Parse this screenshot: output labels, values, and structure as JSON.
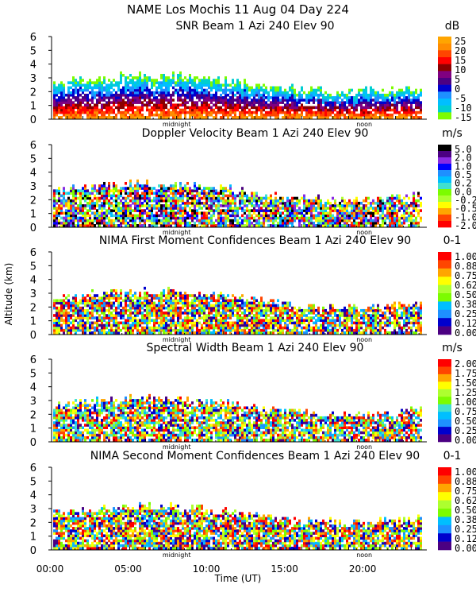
{
  "chart_data": {
    "type": "heatmap",
    "title": "NAME Los Mochis   11 Aug 04 Day 224",
    "xlabel": "Time (UT)",
    "ylabel": "Altitude (km)",
    "xlim": [
      0,
      24
    ],
    "x_ticks": [
      "00:00",
      "05:00",
      "10:00",
      "15:00",
      "20:00"
    ],
    "x_tick_values": [
      0,
      5,
      10,
      15,
      20
    ],
    "midnight_label": "midnight",
    "midnight_time": 8,
    "noon_label": "noon",
    "noon_time": 20,
    "ylim": [
      0,
      6
    ],
    "y_ticks": [
      "0",
      "1",
      "2",
      "3",
      "4",
      "5",
      "6"
    ],
    "panels": [
      {
        "title": "SNR Beam 1 Azi 240 Elev 90",
        "unit": "dB",
        "colorbar_labels": [
          "25",
          "20",
          "15",
          "10",
          "5",
          "0",
          "-5",
          "-10",
          "-15"
        ],
        "colors": [
          "#ffa500",
          "#ff8c00",
          "#ff4500",
          "#ff0000",
          "#8b0000",
          "#800080",
          "#4b0082",
          "#0000cd",
          "#1e90ff",
          "#00bfff",
          "#00ced1",
          "#7cfc00"
        ]
      },
      {
        "title": "Doppler Velocity Beam 1 Azi 240 Elev 90",
        "unit": "m/s",
        "colorbar_labels": [
          "5.0",
          "2.0",
          "1.0",
          "0.5",
          "0.2",
          "0.0",
          "-0.2",
          "-0.5",
          "-1.0",
          "-2.0"
        ],
        "colors": [
          "#000000",
          "#4b0082",
          "#8a2be2",
          "#0000ff",
          "#1e90ff",
          "#00bfff",
          "#40e0d0",
          "#7cfc00",
          "#adff2f",
          "#ffff00",
          "#ffa500",
          "#ff4500",
          "#ff0000"
        ]
      },
      {
        "title": "NIMA First Moment Confidences Beam 1 Azi 240 Elev 90",
        "unit": "0-1",
        "colorbar_labels": [
          "1.00",
          "0.88",
          "0.75",
          "0.62",
          "0.50",
          "0.38",
          "0.25",
          "0.12",
          "0.00"
        ],
        "colors": [
          "#ff0000",
          "#ff4500",
          "#ffa500",
          "#ffff00",
          "#adff2f",
          "#7cfc00",
          "#00bfff",
          "#1e90ff",
          "#0000cd",
          "#4b0082"
        ]
      },
      {
        "title": "Spectral Width Beam 1 Azi 240 Elev 90",
        "unit": "m/s",
        "colorbar_labels": [
          "2.00",
          "1.75",
          "1.50",
          "1.25",
          "1.00",
          "0.75",
          "0.50",
          "0.25",
          "0.00"
        ],
        "colors": [
          "#ff0000",
          "#ff4500",
          "#ffa500",
          "#ffff00",
          "#adff2f",
          "#7cfc00",
          "#40e0d0",
          "#00bfff",
          "#1e90ff",
          "#0000cd",
          "#4b0082"
        ]
      },
      {
        "title": "NIMA Second Moment Confidences Beam 1 Azi 240 Elev 90",
        "unit": "0-1",
        "colorbar_labels": [
          "1.00",
          "0.88",
          "0.75",
          "0.62",
          "0.50",
          "0.38",
          "0.25",
          "0.12",
          "0.00"
        ],
        "colors": [
          "#ff0000",
          "#ff4500",
          "#ffa500",
          "#ffff00",
          "#adff2f",
          "#7cfc00",
          "#00bfff",
          "#1e90ff",
          "#0000cd",
          "#4b0082"
        ]
      }
    ]
  }
}
